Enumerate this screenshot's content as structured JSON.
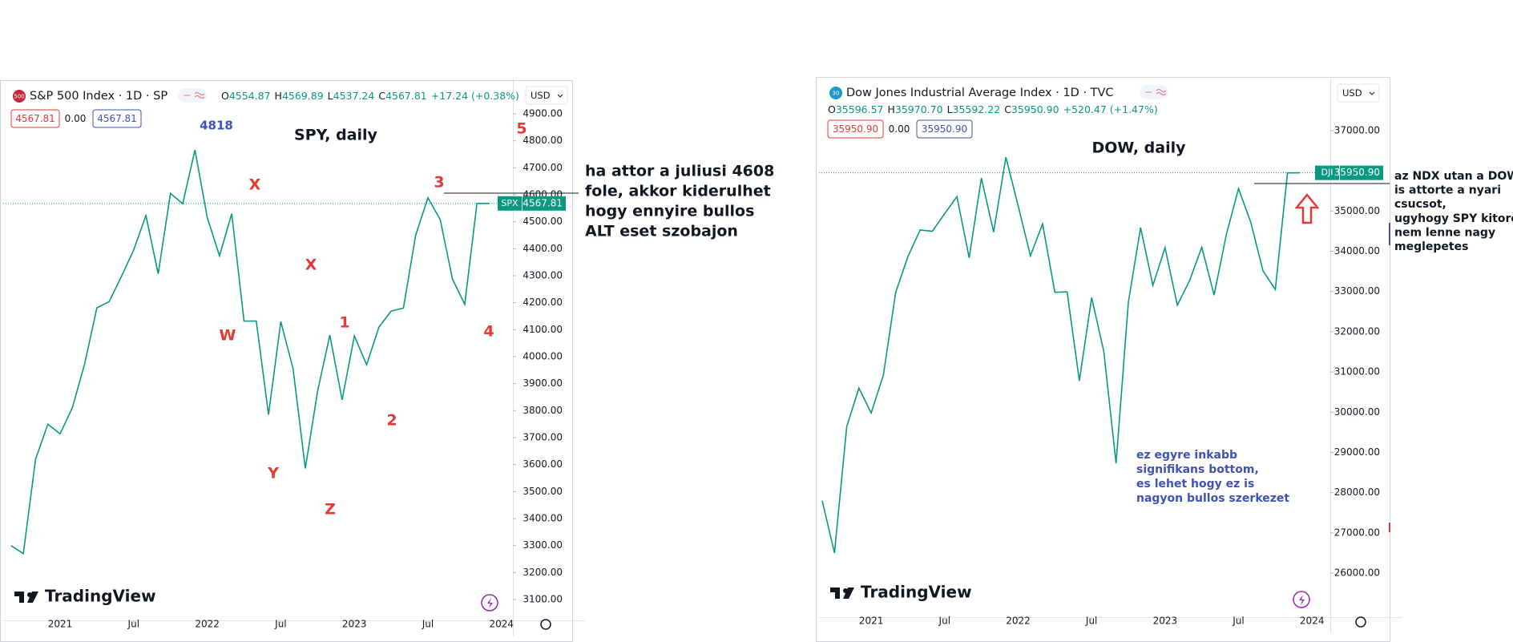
{
  "chart_data": [
    {
      "type": "line",
      "symbol_badge": "500",
      "title": "S&P 500 Index · 1D · SP",
      "ohlc": [
        "O",
        "4554.87",
        "H",
        "4569.89",
        "L",
        "4537.24",
        "C",
        "4567.81",
        "+17.24 (+0.38%)"
      ],
      "price_boxes": [
        "4567.81",
        "0.00",
        "4567.81"
      ],
      "currency": "USD",
      "price_tag_symbol": "SPX",
      "price_tag": "4567.81",
      "brand": "TradingView",
      "color": "#089981",
      "categories": [
        null,
        null,
        null,
        null,
        "2021",
        null,
        null,
        null,
        null,
        null,
        "Jul",
        null,
        null,
        null,
        null,
        null,
        "2022",
        null,
        null,
        null,
        null,
        null,
        "Jul",
        null,
        null,
        null,
        null,
        null,
        "2023",
        null,
        null,
        null,
        null,
        null,
        "Jul",
        null,
        null,
        null,
        null,
        null,
        "2024"
      ],
      "values": [
        3300,
        3270,
        3620,
        3750,
        3714,
        3811,
        3973,
        4181,
        4204,
        4297,
        4395,
        4523,
        4307,
        4605,
        4567,
        4766,
        4516,
        4374,
        4530,
        4132,
        4132,
        3785,
        4130,
        3955,
        3586,
        3872,
        4080,
        3840,
        4077,
        3970,
        4109,
        4169,
        4180,
        4450,
        4589,
        4508,
        4288,
        4194,
        4568,
        4567.81,
        null
      ],
      "ylim": [
        3035,
        4965
      ],
      "yticks": [
        {
          "value": 3100,
          "label": "3100.00"
        },
        {
          "value": 3200,
          "label": "3200.00"
        },
        {
          "value": 3300,
          "label": "3300.00"
        },
        {
          "value": 3400,
          "label": "3400.00"
        },
        {
          "value": 3500,
          "label": "3500.00"
        },
        {
          "value": 3600,
          "label": "3600.00"
        },
        {
          "value": 3700,
          "label": "3700.00"
        },
        {
          "value": 3800,
          "label": "3800.00"
        },
        {
          "value": 3900,
          "label": "3900.00"
        },
        {
          "value": 4000,
          "label": "4000.00"
        },
        {
          "value": 4100,
          "label": "4100.00"
        },
        {
          "value": 4200,
          "label": "4200.00"
        },
        {
          "value": 4300,
          "label": "4300.00"
        },
        {
          "value": 4400,
          "label": "4400.00"
        },
        {
          "value": 4500,
          "label": "4500.00"
        },
        {
          "value": 4600,
          "label": "4600.00"
        },
        {
          "value": 4700,
          "label": "4700.00"
        },
        {
          "value": 4800,
          "label": "4800.00"
        },
        {
          "value": 4900,
          "label": "4900.00"
        }
      ],
      "annotations": [
        {
          "text": "4818",
          "color": "#3f51b5"
        },
        {
          "text": "SPY, daily",
          "color": "#131722"
        },
        {
          "text": "5",
          "color": "#e53935"
        },
        {
          "text": "X",
          "color": "#e53935"
        },
        {
          "text": "3",
          "color": "#e53935"
        },
        {
          "text": "X",
          "color": "#e53935"
        },
        {
          "text": "1",
          "color": "#e53935"
        },
        {
          "text": "W",
          "color": "#e53935"
        },
        {
          "text": "4",
          "color": "#e53935"
        },
        {
          "text": "2",
          "color": "#e53935"
        },
        {
          "text": "Y",
          "color": "#e53935"
        },
        {
          "text": "Z",
          "color": "#e53935"
        }
      ],
      "notes": [
        {
          "color": "#131722",
          "lines": [
            "ha attor a juliusi 4608",
            "fole, akkor kiderulhet",
            "hogy ennyire bullos",
            "ALT eset szobajon"
          ]
        }
      ]
    },
    {
      "type": "line",
      "symbol_badge": "30",
      "title": "Dow Jones Industrial Average Index · 1D · TVC",
      "ohlc": [
        "O",
        "35596.57",
        "H",
        "35970.70",
        "L",
        "35592.22",
        "C",
        "35950.90",
        "+520.47 (+1.47%)"
      ],
      "price_boxes": [
        "35950.90",
        "0.00",
        "35950.90"
      ],
      "currency": "USD",
      "price_tag_symbol": "DJI",
      "price_tag": "35950.90",
      "brand": "TradingView",
      "color": "#089981",
      "categories": [
        null,
        null,
        null,
        null,
        "2021",
        null,
        null,
        null,
        null,
        null,
        "Jul",
        null,
        null,
        null,
        null,
        null,
        "2022",
        null,
        null,
        null,
        null,
        null,
        "Jul",
        null,
        null,
        null,
        null,
        null,
        "2023",
        null,
        null,
        null,
        null,
        null,
        "Jul",
        null,
        null,
        null,
        null,
        null,
        "2024"
      ],
      "values": [
        27800,
        26500,
        29640,
        30600,
        29980,
        30930,
        32980,
        33870,
        34530,
        34500,
        34935,
        35360,
        33840,
        35820,
        34480,
        36340,
        35130,
        33890,
        34680,
        32980,
        32990,
        30780,
        32850,
        31510,
        28730,
        32730,
        34590,
        33150,
        34090,
        32660,
        33270,
        34100,
        32910,
        34410,
        35560,
        34720,
        33510,
        33050,
        35950,
        35950.9,
        null
      ],
      "ylim": [
        25000,
        37850
      ],
      "yticks": [
        {
          "value": 26000,
          "label": "26000.00"
        },
        {
          "value": 27000,
          "label": "27000.00"
        },
        {
          "value": 28000,
          "label": "28000.00"
        },
        {
          "value": 29000,
          "label": "29000.00"
        },
        {
          "value": 30000,
          "label": "30000.00"
        },
        {
          "value": 31000,
          "label": "31000.00"
        },
        {
          "value": 32000,
          "label": "32000.00"
        },
        {
          "value": 33000,
          "label": "33000.00"
        },
        {
          "value": 34000,
          "label": "34000.00"
        },
        {
          "value": 35000,
          "label": "35000.00"
        },
        {
          "value": 36000,
          "label": "36000.00"
        },
        {
          "value": 37000,
          "label": "37000.00"
        }
      ],
      "annotations": [
        {
          "text": "DOW, daily",
          "color": "#131722"
        }
      ],
      "notes": [
        {
          "color": "#131722",
          "lines": [
            "az NDX utan a DOW",
            "is attorte a nyari",
            "csucsot,",
            "ugyhogy SPY kitores",
            "nem lenne nagy",
            "meglepetes"
          ]
        },
        {
          "color": "#3f51b5",
          "lines": [
            "ez egyre inkabb",
            "signifikans bottom,",
            "es lehet hogy ez is",
            "nagyon bullos szerkezet"
          ]
        }
      ]
    }
  ]
}
